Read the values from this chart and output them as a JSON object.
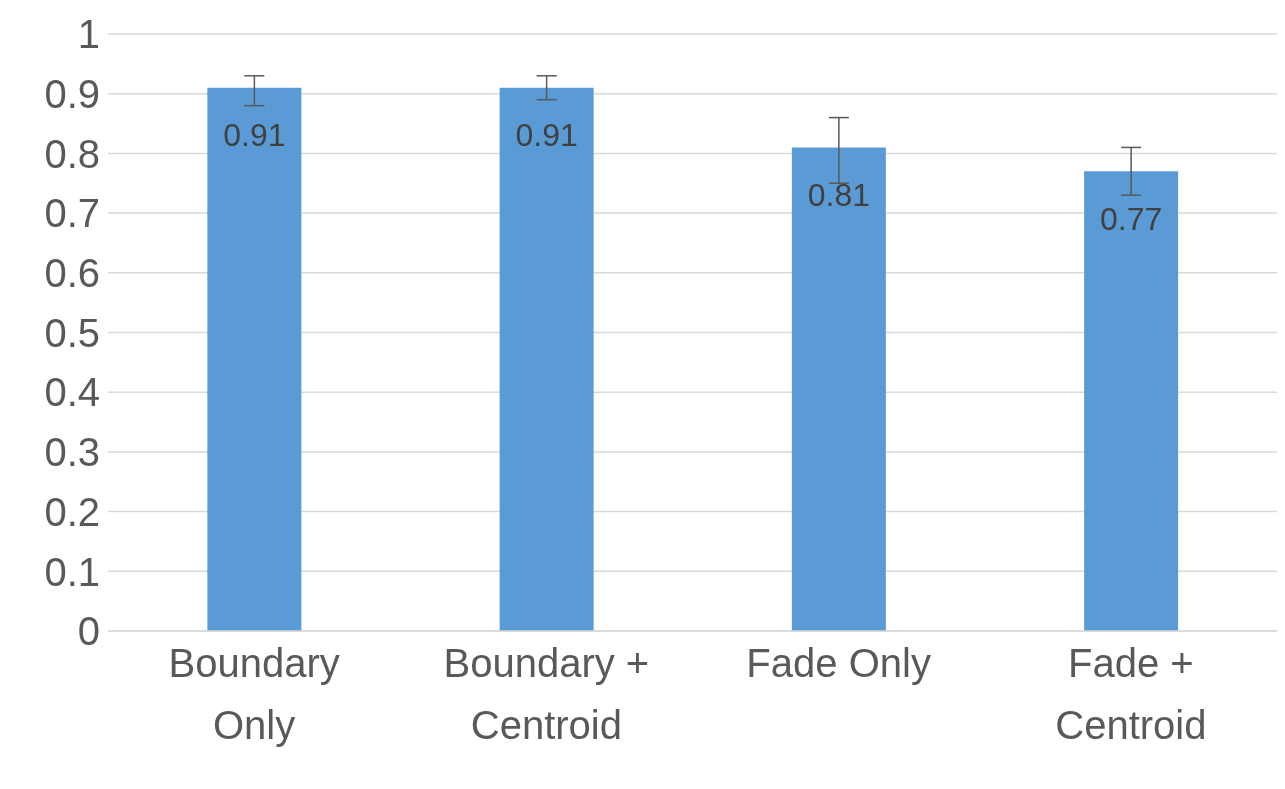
{
  "chart_data": {
    "type": "bar",
    "categories": [
      "Boundary Only",
      "Boundary + Centroid",
      "Fade Only",
      "Fade + Centroid"
    ],
    "values": [
      0.91,
      0.91,
      0.81,
      0.77
    ],
    "errors": [
      [
        0.88,
        0.93
      ],
      [
        0.89,
        0.93
      ],
      [
        0.75,
        0.86
      ],
      [
        0.73,
        0.81
      ]
    ],
    "color": "#5b9bd5",
    "data_labels": true,
    "ylim": [
      0,
      1
    ],
    "yticks": [
      0,
      0.1,
      0.2,
      0.3,
      0.4,
      0.5,
      0.6,
      0.7,
      0.8,
      0.9,
      1
    ],
    "grid": "y",
    "legend": false
  }
}
